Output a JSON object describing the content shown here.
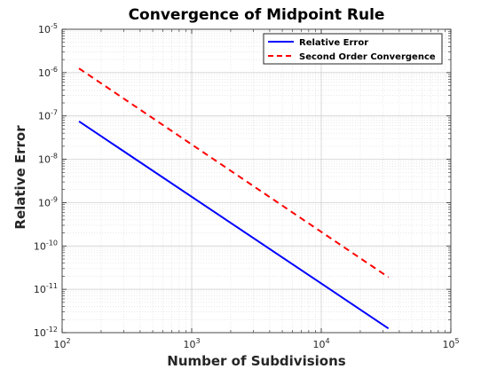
{
  "chart_data": {
    "type": "line",
    "title": "Convergence of Midpoint Rule",
    "xlabel": "Number of Subdivisions",
    "ylabel": "Relative Error",
    "xscale": "log",
    "yscale": "log",
    "xlim": [
      100,
      100000
    ],
    "ylim": [
      1e-12,
      1e-05
    ],
    "grid": true,
    "minor_grid": true,
    "legend_position": "top-right",
    "x_ticks": [
      {
        "value": 100,
        "base": "10",
        "exp": "2"
      },
      {
        "value": 1000,
        "base": "10",
        "exp": "3"
      },
      {
        "value": 10000,
        "base": "10",
        "exp": "4"
      },
      {
        "value": 100000,
        "base": "10",
        "exp": "5"
      }
    ],
    "y_ticks": [
      {
        "value": 1e-12,
        "base": "10",
        "exp": "-12"
      },
      {
        "value": 1e-11,
        "base": "10",
        "exp": "-11"
      },
      {
        "value": 1e-10,
        "base": "10",
        "exp": "-10"
      },
      {
        "value": 1e-09,
        "base": "10",
        "exp": "-9"
      },
      {
        "value": 1e-08,
        "base": "10",
        "exp": "-8"
      },
      {
        "value": 1e-07,
        "base": "10",
        "exp": "-7"
      },
      {
        "value": 1e-06,
        "base": "10",
        "exp": "-6"
      },
      {
        "value": 1e-05,
        "base": "10",
        "exp": "-5"
      }
    ],
    "series": [
      {
        "name": "Relative Error",
        "color": "#0000ff",
        "style": "solid",
        "x": [
          135,
          33000
        ],
        "y": [
          7.5e-08,
          1.25e-12
        ]
      },
      {
        "name": "Second Order Convergence",
        "color": "#ff0000",
        "style": "dashed",
        "x": [
          135,
          33000
        ],
        "y": [
          1.25e-06,
          1.9e-11
        ]
      }
    ]
  }
}
